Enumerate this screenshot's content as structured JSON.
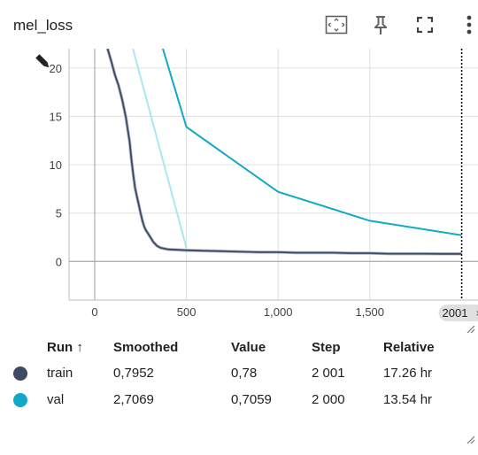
{
  "card": {
    "title": "mel_loss"
  },
  "toolbar": {
    "icons": [
      "fit-domain-icon",
      "pin-icon",
      "fullscreen-icon",
      "more-vert-icon"
    ]
  },
  "chart_data": {
    "type": "line",
    "title": "mel_loss",
    "xlabel": "",
    "ylabel": "",
    "xlim": [
      -140,
      2090
    ],
    "ylim": [
      -4,
      22
    ],
    "x_ticks": [
      0,
      500,
      1000,
      1500
    ],
    "x_tick_labels": [
      "0",
      "500",
      "1,000",
      "1,500"
    ],
    "y_ticks": [
      0,
      5,
      10,
      15,
      20
    ],
    "y_tick_labels": [
      "0",
      "5",
      "10",
      "15",
      "20"
    ],
    "grid": true,
    "hover_step": 2001,
    "hover_step_label": "2001",
    "series": [
      {
        "name": "train",
        "color": "#3d4a62",
        "raw_color": "#b0b8c8",
        "x": [
          70,
          90,
          110,
          130,
          150,
          170,
          190,
          200,
          210,
          220,
          230,
          240,
          250,
          260,
          270,
          280,
          290,
          300,
          320,
          340,
          360,
          400,
          450,
          500,
          600,
          700,
          800,
          900,
          1000,
          1100,
          1200,
          1300,
          1400,
          1500,
          1600,
          1700,
          1800,
          1900,
          2001
        ],
        "y": [
          22,
          20.7,
          19.3,
          18.2,
          16.7,
          14.9,
          12.4,
          10.6,
          9.0,
          7.6,
          6.7,
          5.9,
          5.0,
          4.2,
          3.6,
          3.2,
          2.9,
          2.6,
          2.0,
          1.6,
          1.4,
          1.25,
          1.2,
          1.15,
          1.1,
          1.05,
          1.0,
          0.95,
          0.95,
          0.9,
          0.9,
          0.9,
          0.85,
          0.85,
          0.8,
          0.8,
          0.8,
          0.78,
          0.78
        ]
      },
      {
        "name": "val",
        "color": "#12a9c9",
        "x": [
          300,
          500,
          1000,
          1500,
          2000
        ],
        "y": [
          26.5,
          13.9,
          7.2,
          4.2,
          2.7069
        ]
      },
      {
        "name": "",
        "color": "#a8e8f2",
        "x": [
          180,
          500
        ],
        "y": [
          24.0,
          1.4
        ]
      }
    ]
  },
  "table": {
    "headers": {
      "run": "Run ↑",
      "smoothed": "Smoothed",
      "value": "Value",
      "step": "Step",
      "relative": "Relative"
    },
    "rows": [
      {
        "name": "train",
        "color": "#3d4a62",
        "smoothed": "0,7952",
        "value": "0,78",
        "step": "2 001",
        "relative": "17.26 hr"
      },
      {
        "name": "val",
        "color": "#12a9c9",
        "smoothed": "2,7069",
        "value": "0,7059",
        "step": "2 000",
        "relative": "13.54 hr"
      }
    ]
  }
}
